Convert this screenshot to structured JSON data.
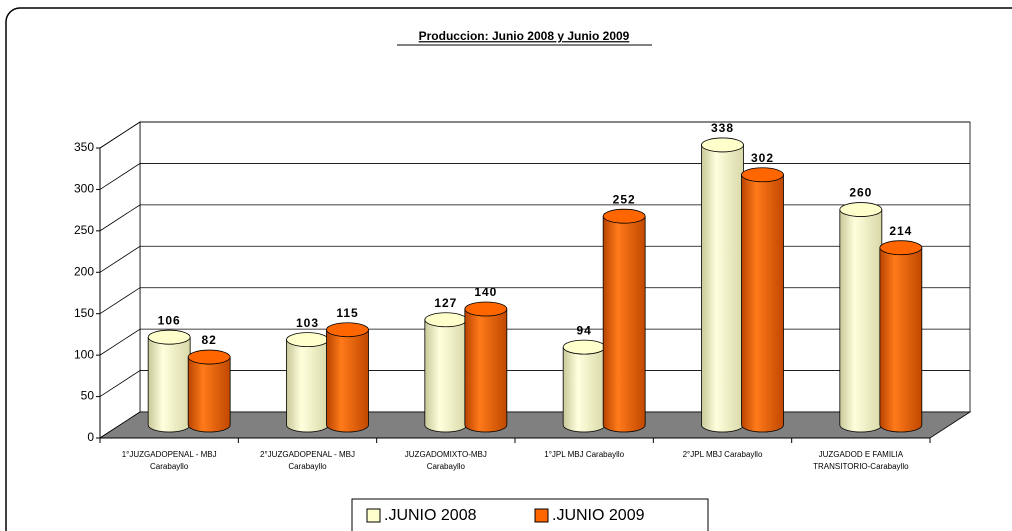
{
  "chart_data": {
    "type": "bar",
    "title": "Produccion: Junio 2008 y Junio 2009",
    "categories": [
      "1°JUZGADOPENAL - MBJ\nCarabayllo",
      "2°JUZGADOPENAL - MBJ\nCarabayllo",
      "JUZGADOMIXTO-MBJ\nCarabayllo",
      "1°JPL MBJ Carabayllo",
      "2°JPL MBJ Carabayllo",
      "JUZGADOD E FAMILIA\nTRANSITORIO-Carabayllo"
    ],
    "series": [
      {
        "name": ".JUNIO 2008",
        "color": "#ffffcc",
        "values": [
          106,
          103,
          127,
          94,
          338,
          260
        ]
      },
      {
        "name": ".JUNIO 2009",
        "color": "#ff6600",
        "values": [
          82,
          115,
          140,
          252,
          302,
          214
        ]
      }
    ],
    "ylim": [
      0,
      350
    ],
    "yticks": [
      0,
      50,
      100,
      150,
      200,
      250,
      300,
      350
    ],
    "grid": true,
    "legend": "bottom"
  }
}
